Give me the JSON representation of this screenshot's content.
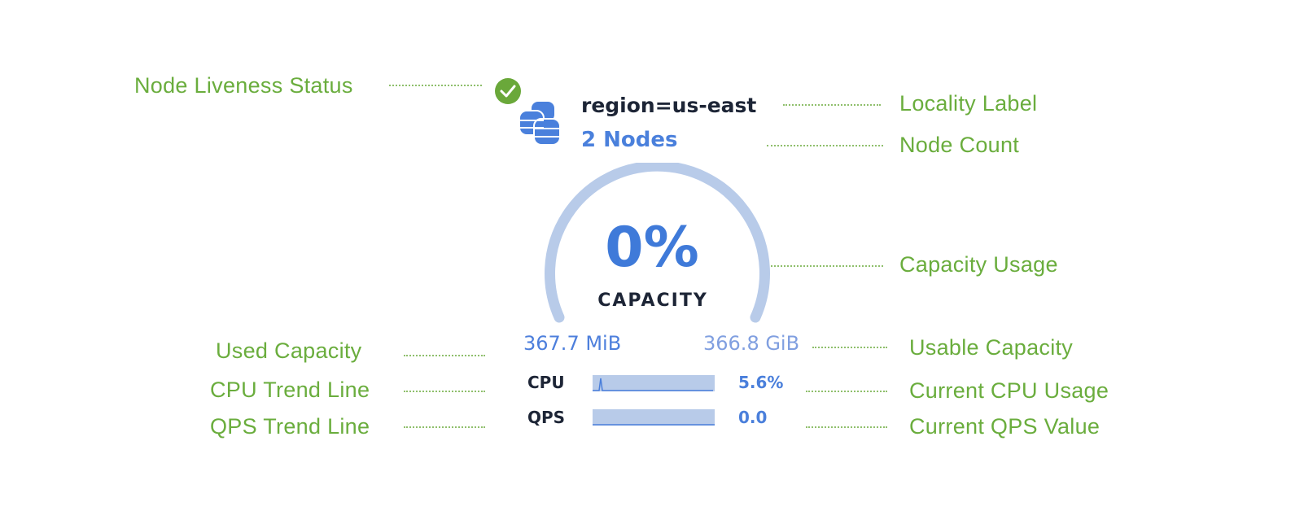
{
  "annotations": {
    "liveness": "Node Liveness Status",
    "locality": "Locality Label",
    "node_count": "Node Count",
    "capacity_usage": "Capacity Usage",
    "used_capacity": "Used Capacity",
    "usable_capacity": "Usable Capacity",
    "cpu_trend": "CPU Trend Line",
    "qps_trend": "QPS Trend Line",
    "current_cpu": "Current CPU Usage",
    "current_qps": "Current QPS Value"
  },
  "widget": {
    "locality": "region=us-east",
    "node_count": "2 Nodes",
    "liveness_status": "live",
    "capacity_percent": "0%",
    "capacity_label": "CAPACITY",
    "capacity_fraction": 0,
    "used": "367.7 MiB",
    "usable": "366.8 GiB",
    "cpu_label": "CPU",
    "cpu_value": "5.6%",
    "qps_label": "QPS",
    "qps_value": "0.0"
  },
  "colors": {
    "annotation": "#6aad3d",
    "accent": "#3f7ad9",
    "gauge_track": "#b8cbe9",
    "live": "#6aa83a"
  }
}
